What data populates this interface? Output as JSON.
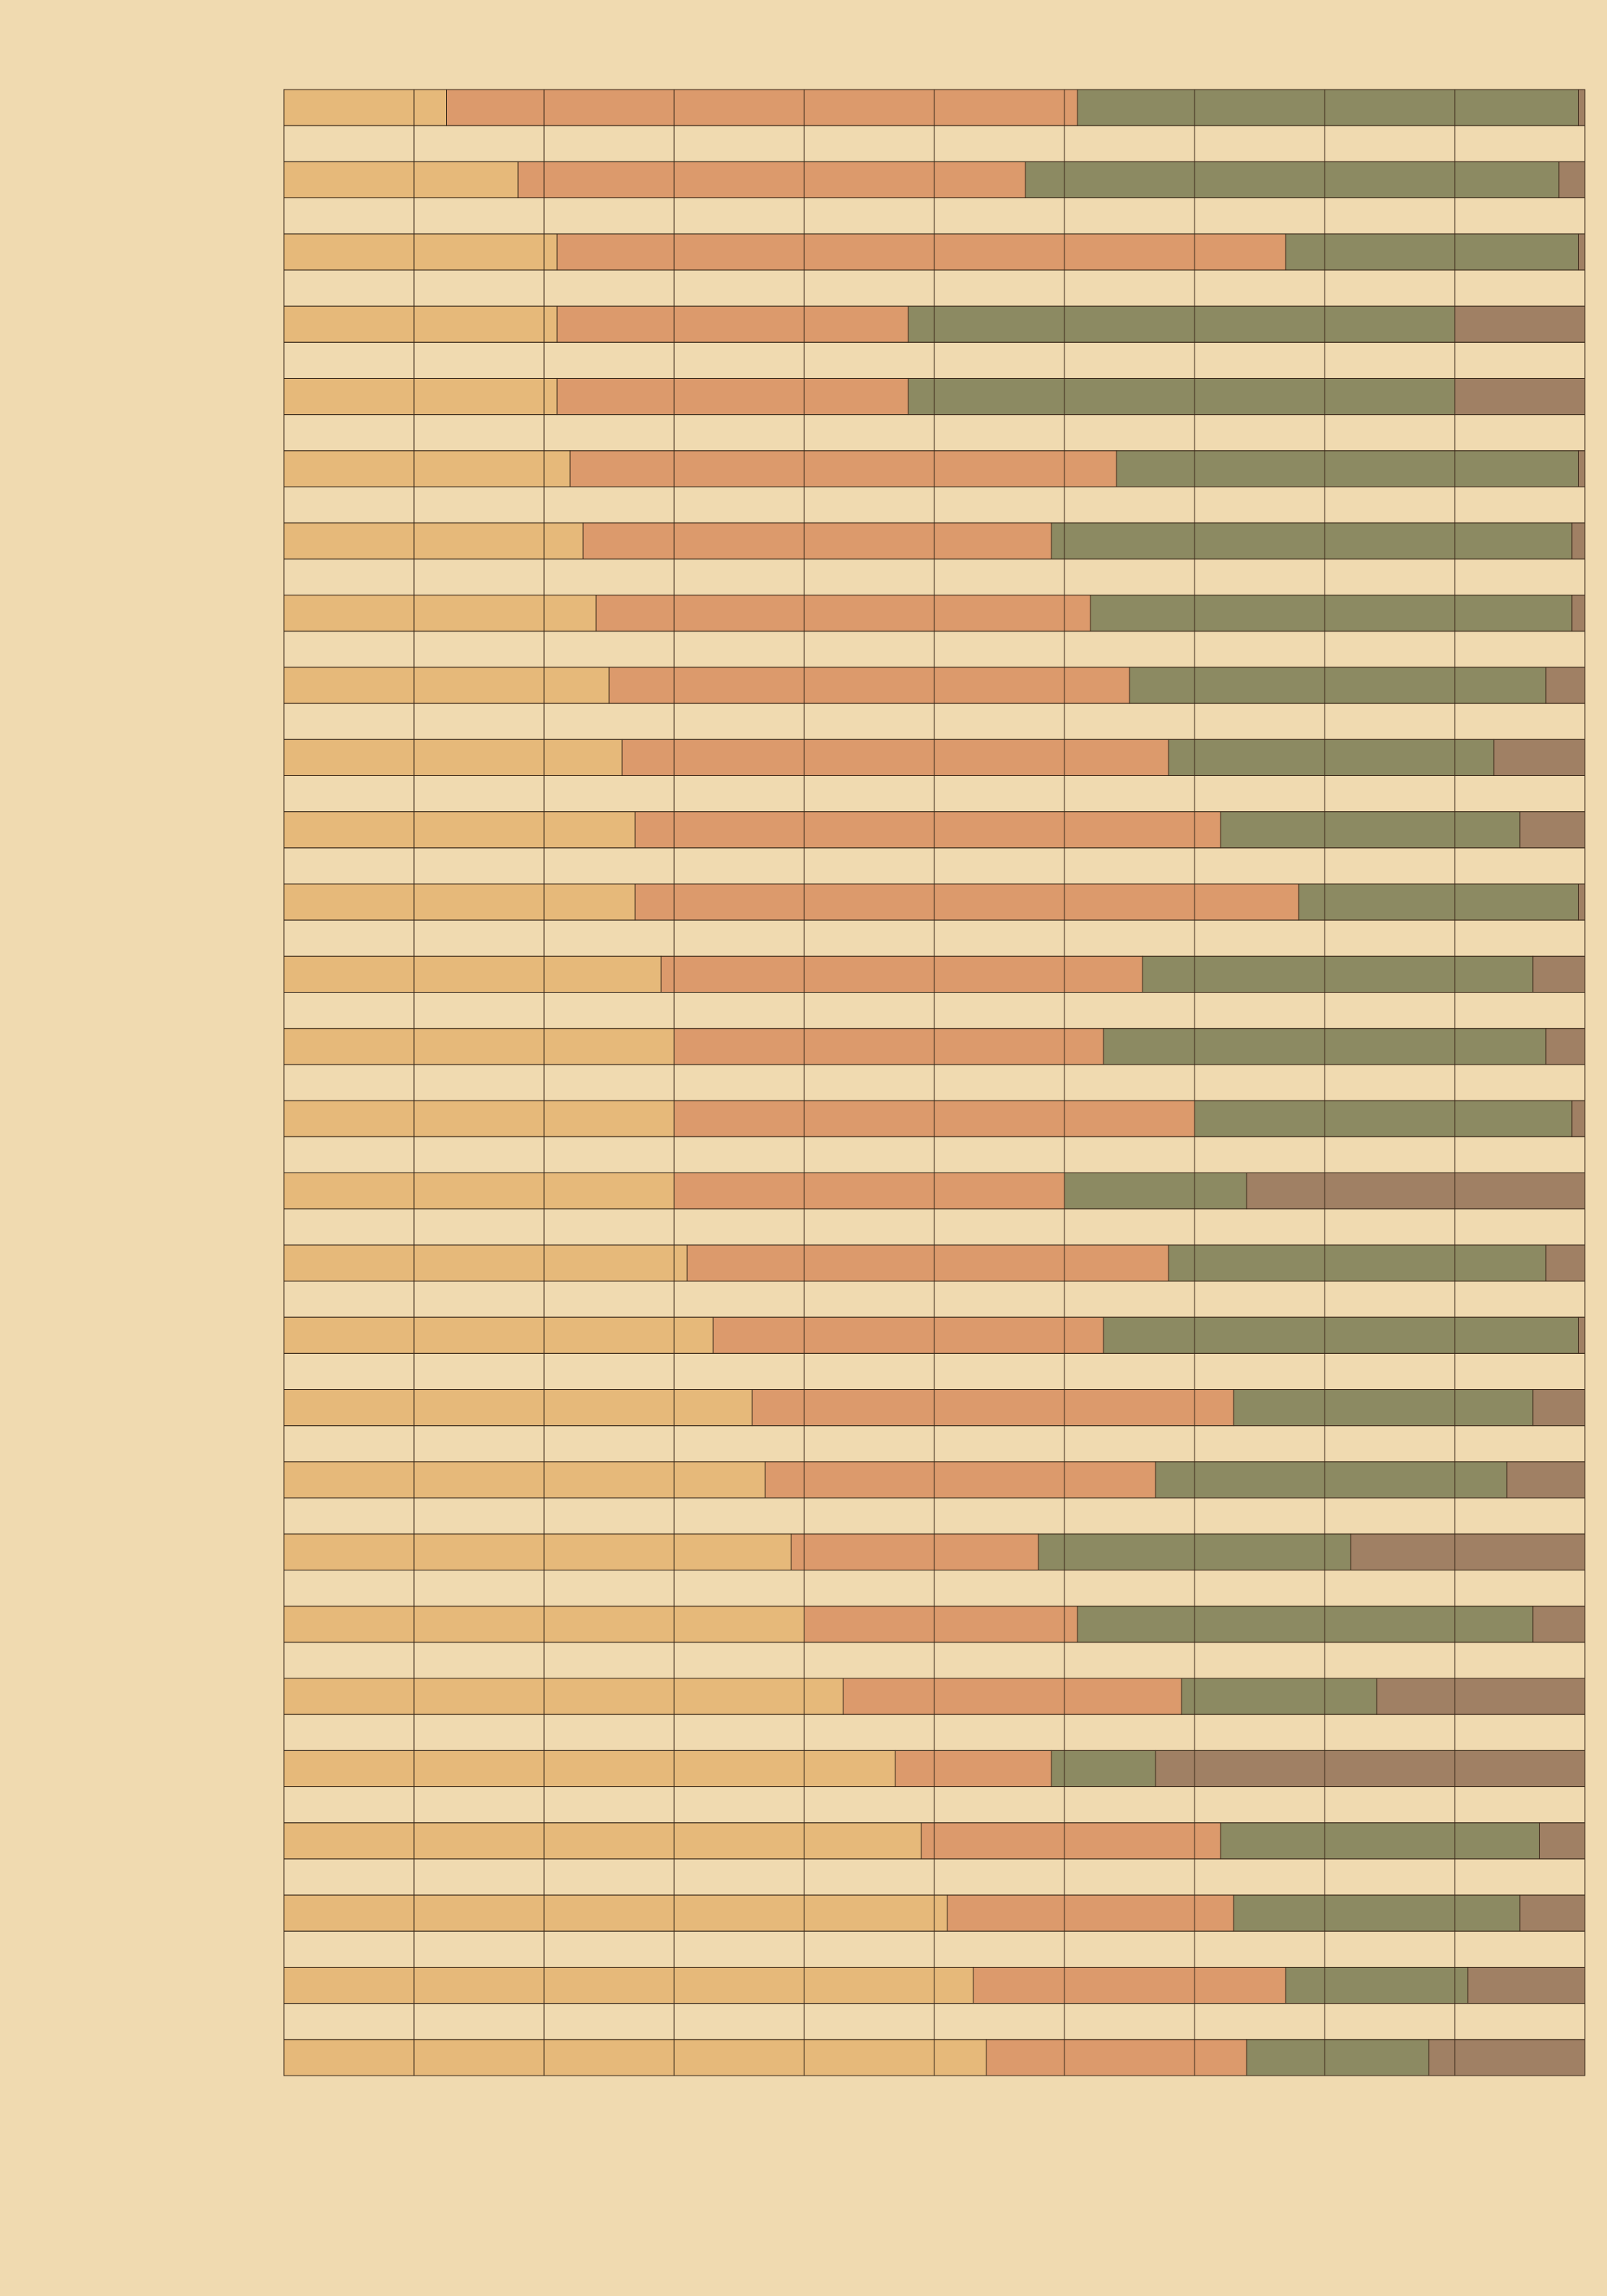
{
  "chart_data": {
    "type": "bar",
    "orientation": "horizontal",
    "stacked": true,
    "categories": [
      null,
      null,
      null,
      null,
      null,
      null,
      null,
      null,
      null,
      null,
      null,
      null,
      null,
      null,
      null,
      null,
      null,
      null,
      null,
      null,
      null,
      null,
      null,
      null,
      null,
      null,
      null,
      null
    ],
    "series": [
      {
        "color": "#e6b97a",
        "values": [
          12.5,
          18,
          21,
          21,
          21,
          22,
          23,
          24,
          25,
          26,
          27,
          27,
          29,
          30,
          30,
          30,
          31,
          33,
          36,
          37,
          39,
          40,
          43,
          47,
          49,
          51,
          53,
          54
        ]
      },
      {
        "color": "#dc9a6c",
        "values": [
          48.5,
          39,
          56,
          27,
          27,
          42,
          36,
          38,
          40,
          42,
          45,
          51,
          37,
          33,
          40,
          30,
          37,
          30,
          37,
          30,
          19,
          21,
          26,
          12,
          23,
          22,
          24,
          20
        ]
      },
      {
        "color": "#8c8a62",
        "values": [
          38.5,
          41,
          22.5,
          42,
          42,
          35.5,
          40,
          37,
          32,
          25,
          23,
          21.5,
          30,
          34,
          29,
          14,
          29,
          36.5,
          23,
          27,
          24,
          35,
          15,
          8,
          24.5,
          22,
          14,
          14
        ]
      },
      {
        "color": "#a08064",
        "values": [
          0.5,
          2,
          0.5,
          10,
          10,
          0.5,
          1,
          1,
          3,
          7,
          5,
          0.5,
          4,
          3,
          1,
          26,
          3,
          0.5,
          4,
          6,
          18,
          4,
          16,
          33,
          3.5,
          5,
          9,
          12
        ]
      }
    ],
    "xlim": [
      0,
      100
    ],
    "xticks": [
      0,
      10,
      20,
      30,
      40,
      50,
      60,
      70,
      80,
      90,
      100
    ],
    "grid": true
  }
}
